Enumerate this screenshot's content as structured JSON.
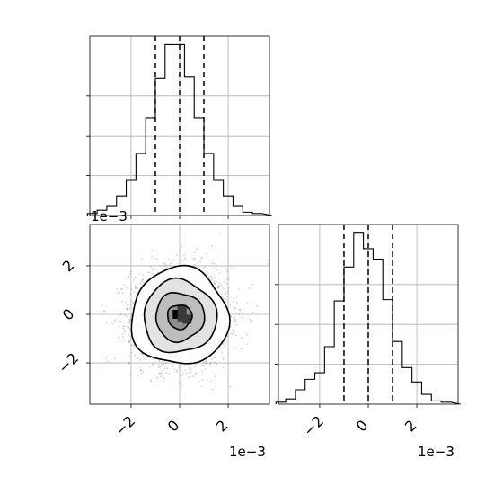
{
  "chart_data": [
    {
      "type": "histogram",
      "panel": "top-left",
      "parameter_index": 0,
      "x_range": [
        -0.0037,
        0.0037
      ],
      "bins": [
        -0.0036,
        -0.0032,
        -0.0028,
        -0.0024,
        -0.002,
        -0.0016,
        -0.0012,
        -0.0008,
        -0.0004,
        0.0,
        0.0004,
        0.0008,
        0.0012,
        0.0016,
        0.002,
        0.0024,
        0.0028,
        0.0032,
        0.0036
      ],
      "counts": [
        3,
        8,
        15,
        30,
        55,
        95,
        150,
        210,
        262,
        262,
        212,
        150,
        95,
        55,
        30,
        15,
        5,
        3
      ],
      "y_max": 275,
      "quantile_lines": [
        -0.001,
        0.0,
        0.001
      ],
      "grid": true,
      "x_tick_labels_shown": false,
      "y_tick_labels_shown": false
    },
    {
      "type": "heatmap",
      "panel": "bottom-left",
      "x_range": [
        -0.0037,
        0.0037
      ],
      "y_range": [
        -0.0037,
        0.0037
      ],
      "x_ticks": [
        "−2",
        "0",
        "2"
      ],
      "y_ticks": [
        "−2",
        "0",
        "2"
      ],
      "x_tick_values": [
        -0.002,
        0.0,
        0.002
      ],
      "y_tick_values": [
        -0.002,
        0.0,
        0.002
      ],
      "x_offset_label": "1e−3",
      "y_offset_label": "1e−3",
      "contour_sigma_levels": [
        0.5,
        1.0,
        1.5,
        2.0
      ],
      "center": [
        0.0,
        -0.0001
      ],
      "sigma": [
        0.001,
        0.001
      ],
      "scatter_points": "dense gaussian cloud",
      "grid": true
    },
    {
      "type": "histogram",
      "panel": "bottom-right",
      "parameter_index": 1,
      "x_range": [
        -0.0037,
        0.0037
      ],
      "bins": [
        -0.0036,
        -0.0032,
        -0.0028,
        -0.0024,
        -0.002,
        -0.0016,
        -0.0012,
        -0.0008,
        -0.0004,
        0.0,
        0.0004,
        0.0008,
        0.0012,
        0.0016,
        0.002,
        0.0024,
        0.0028,
        0.0032,
        0.0036
      ],
      "counts": [
        3,
        8,
        22,
        38,
        48,
        88,
        158,
        210,
        263,
        238,
        222,
        160,
        96,
        56,
        34,
        15,
        5,
        3
      ],
      "y_max": 275,
      "quantile_lines": [
        -0.001,
        0.0,
        0.001
      ],
      "x_ticks": [
        "−2",
        "0",
        "2"
      ],
      "x_tick_values": [
        -0.002,
        0.0,
        0.002
      ],
      "x_offset_label": "1e−3",
      "grid": true,
      "y_tick_labels_shown": false
    }
  ]
}
